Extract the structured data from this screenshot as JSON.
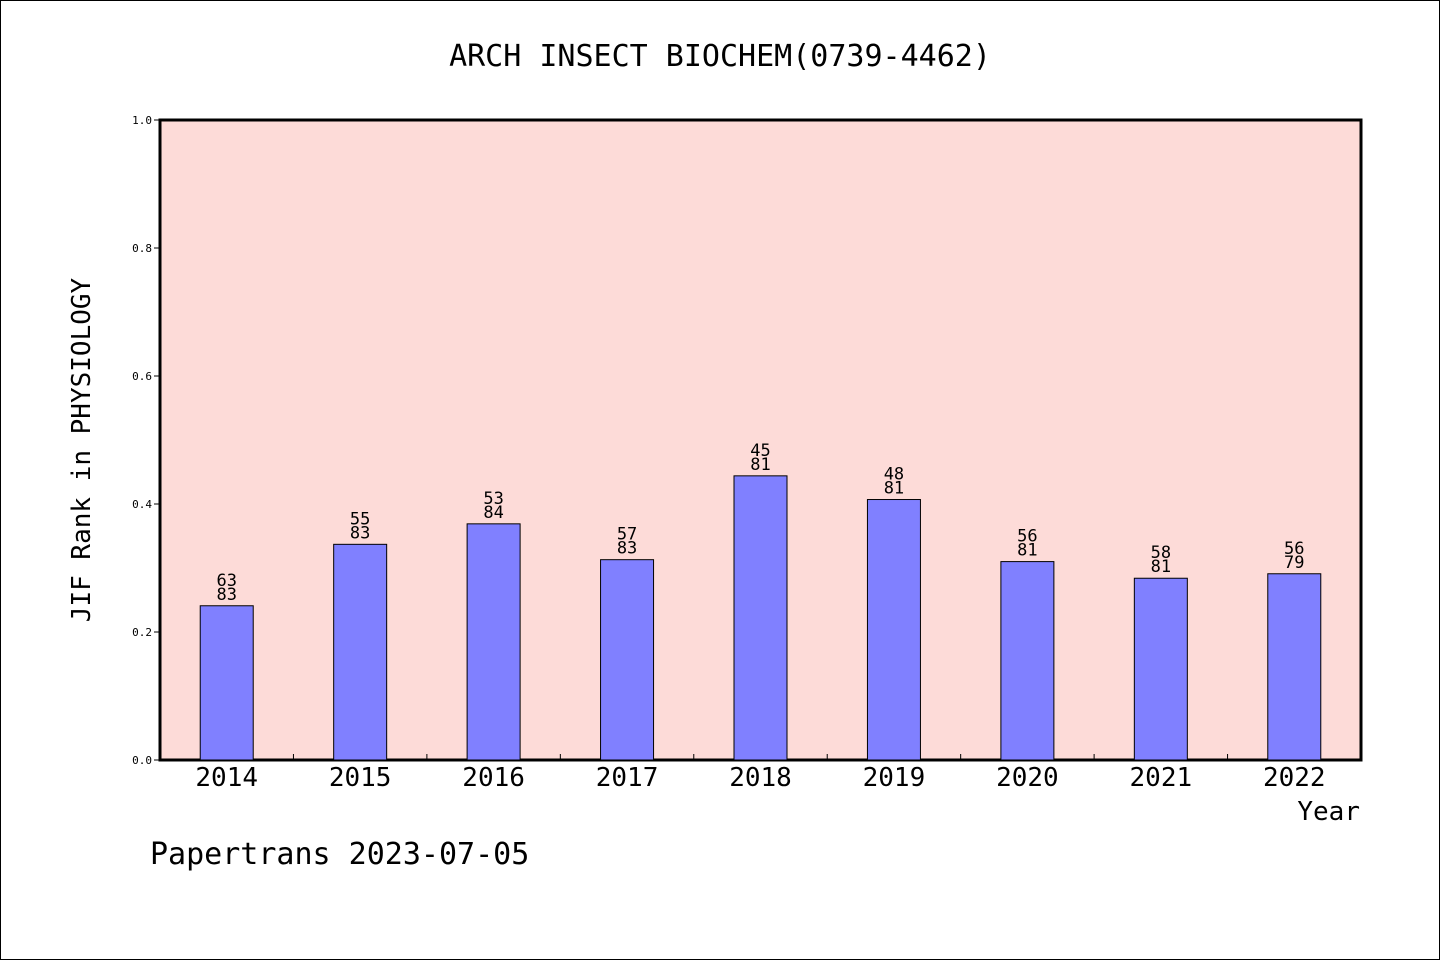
{
  "chart_data": {
    "type": "bar",
    "title": "ARCH INSECT BIOCHEM(0739-4462)",
    "xlabel": "Year",
    "ylabel": "JIF Rank in PHYSIOLOGY",
    "ylim": [
      0,
      1
    ],
    "yticks": [
      "0.0",
      "0.2",
      "0.4",
      "0.6",
      "0.8",
      "1.0"
    ],
    "categories": [
      "2014",
      "2015",
      "2016",
      "2017",
      "2018",
      "2019",
      "2020",
      "2021",
      "2022"
    ],
    "values": [
      0.241,
      0.337,
      0.369,
      0.313,
      0.444,
      0.407,
      0.31,
      0.284,
      0.291
    ],
    "labels_top": [
      "63",
      "55",
      "53",
      "57",
      "45",
      "48",
      "56",
      "58",
      "56"
    ],
    "labels_bottom": [
      "83",
      "83",
      "84",
      "83",
      "81",
      "81",
      "81",
      "81",
      "79"
    ],
    "grid": false,
    "colors": {
      "plot_bg": "#fddbd8",
      "bar": "#8080ff"
    }
  },
  "footer": "Papertrans 2023-07-05"
}
